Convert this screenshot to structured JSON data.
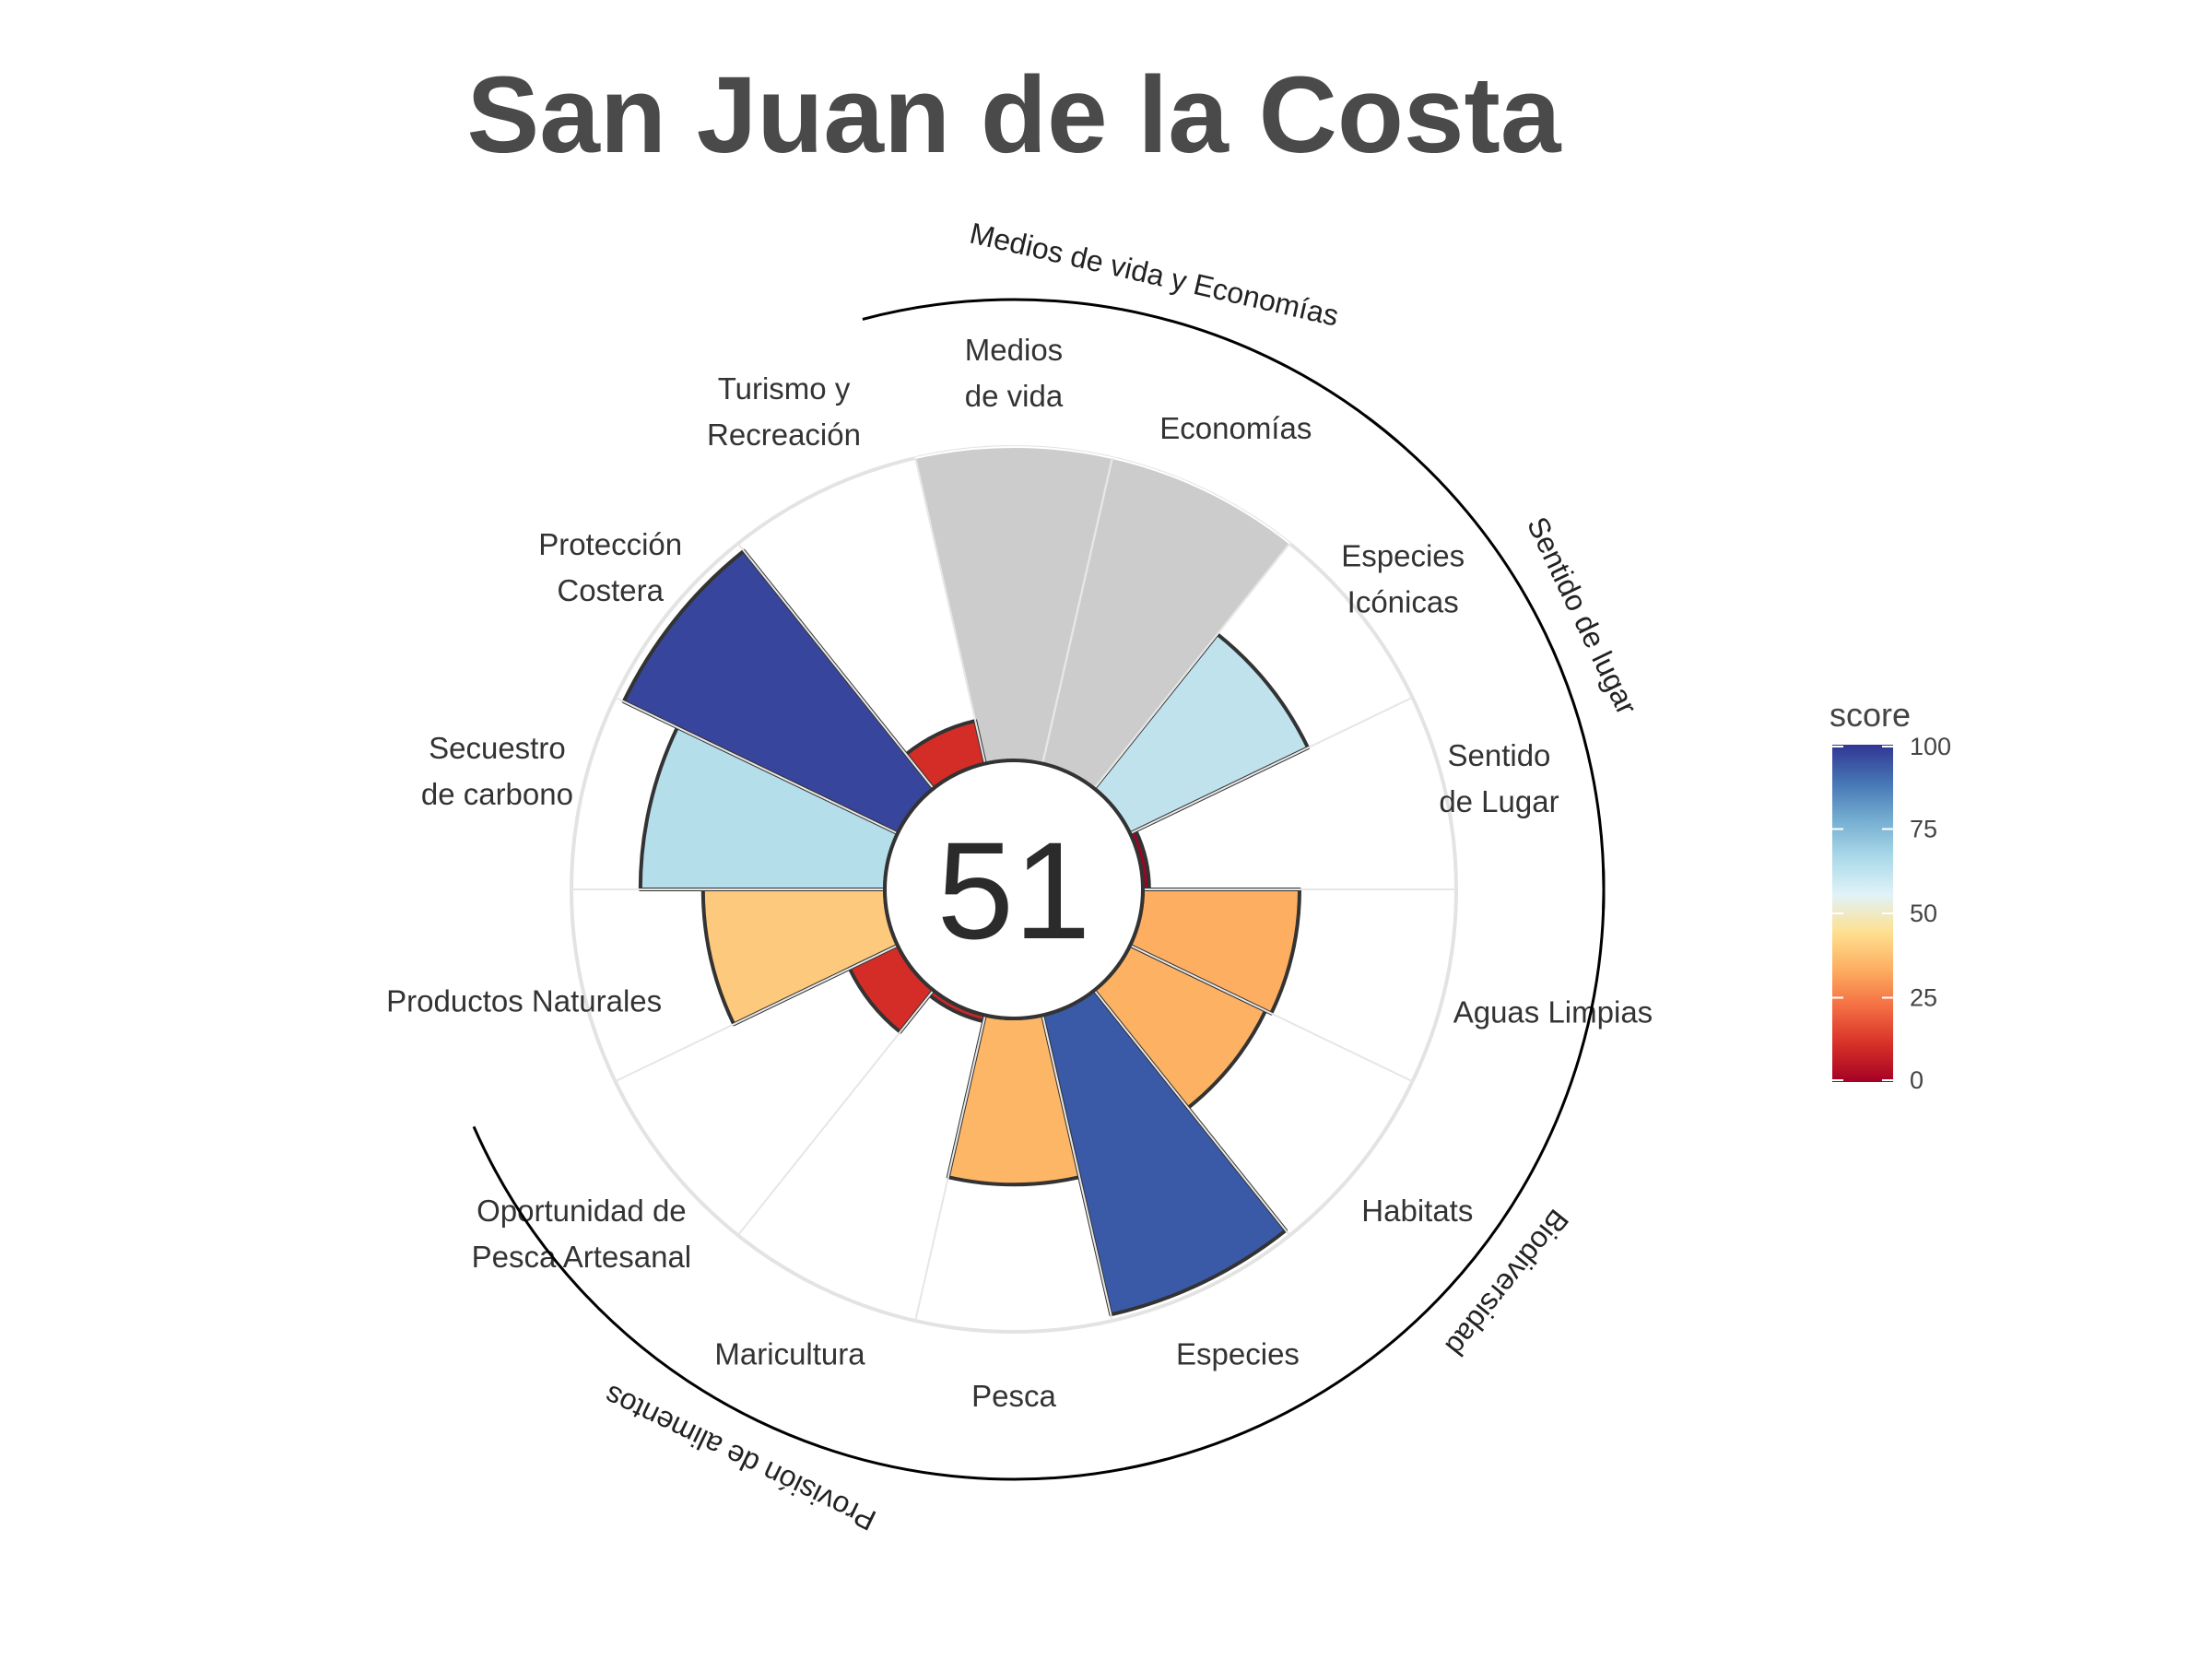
{
  "chart_data": {
    "type": "polar-bar",
    "title": "San Juan de la Costa",
    "center_score": "51",
    "max_score": 100,
    "goals": [
      {
        "name": "Especies",
        "label": [
          "Especies"
        ],
        "score": 98,
        "color": "#3a5aa8"
      },
      {
        "name": "Habitats",
        "label": [
          "Habitats"
        ],
        "score": 48,
        "color": "#fdb163"
      },
      {
        "name": "Aguas Limpias",
        "label": [
          "Aguas Limpias"
        ],
        "score": 50,
        "color": "#fdae61"
      },
      {
        "name": "Sentido de Lugar",
        "label": [
          "Sentido",
          "de Lugar"
        ],
        "score": 2,
        "color": "#a50026"
      },
      {
        "name": "Especies Icónicas",
        "label": [
          "Especies",
          "Icónicas"
        ],
        "score": 63,
        "color": "#bfe2ed"
      },
      {
        "name": "Economías",
        "label": [
          "Economías"
        ],
        "score": null,
        "color": "#cccccc"
      },
      {
        "name": "Medios de vida",
        "label": [
          "Medios",
          "de vida"
        ],
        "score": null,
        "color": "#cccccc"
      },
      {
        "name": "Turismo y Recreación",
        "label": [
          "Turismo y",
          "Recreación"
        ],
        "score": 14,
        "color": "#d42d27"
      },
      {
        "name": "Protección Costera",
        "label": [
          "Protección",
          "Costera"
        ],
        "score": 97,
        "color": "#37469c"
      },
      {
        "name": "Secuestro de carbono",
        "label": [
          "Secuestro",
          "de carbono"
        ],
        "score": 78,
        "color": "#b3deea"
      },
      {
        "name": "Productos Naturales",
        "label": [
          "Productos Naturales"
        ],
        "score": 58,
        "color": "#fdc97d"
      },
      {
        "name": "Oportunidad de Pesca Artesanal",
        "label": [
          "Oportunidad de",
          "Pesca Artesanal"
        ],
        "score": 17,
        "color": "#d42d27"
      },
      {
        "name": "Maricultura",
        "label": [
          "Maricultura"
        ],
        "score": 2,
        "color": "#c9262a"
      },
      {
        "name": "Pesca",
        "label": [
          "Pesca"
        ],
        "score": 53,
        "color": "#fdb566"
      }
    ],
    "groups": [
      {
        "name": "Provisión de alimentos"
      },
      {
        "name": "Biodiversidad"
      },
      {
        "name": "Sentido de lugar"
      },
      {
        "name": "Medios de vida y Economías"
      }
    ],
    "legend": {
      "title": "score",
      "ticks": [
        "0",
        "25",
        "50",
        "75",
        "100"
      ],
      "colors": [
        "#a50026",
        "#d73027",
        "#f46d43",
        "#fdae61",
        "#fee090",
        "#e0f3f8",
        "#abd9e9",
        "#74add1",
        "#4575b4",
        "#313695"
      ]
    }
  }
}
